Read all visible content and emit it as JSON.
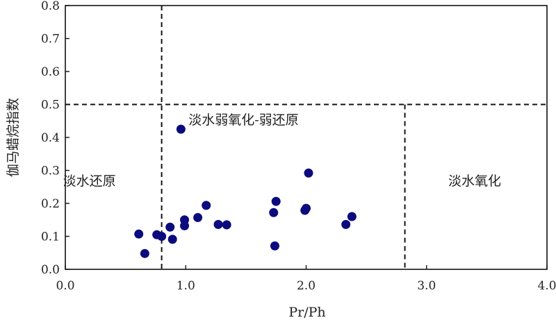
{
  "chart_data": {
    "type": "scatter",
    "title": "",
    "xlabel": "Pr/Ph",
    "ylabel": "伽马蜡烷指数",
    "xlim": [
      0.0,
      4.0
    ],
    "ylim": [
      0.0,
      0.8
    ],
    "x_ticks": [
      0.0,
      1.0,
      2.0,
      3.0,
      4.0
    ],
    "x_tick_labels": [
      "0.0",
      "1.0",
      "2.0",
      "3.0",
      "4.0"
    ],
    "y_ticks": [
      0.0,
      0.1,
      0.2,
      0.3,
      0.4,
      0.5,
      0.6,
      0.7,
      0.8
    ],
    "y_tick_labels": [
      "0.0",
      "0.1",
      "0.2",
      "0.3",
      "0.4",
      "0.5",
      "0.6",
      "0.7",
      "0.8"
    ],
    "grid": false,
    "legend": "none",
    "marker_color": "#0b0b7e",
    "guides": {
      "vertical_left": 0.8,
      "horizontal": 0.5,
      "vertical_right": 2.82
    },
    "regions": [
      {
        "label": "淡水还原",
        "x": 0.2,
        "y": 0.27
      },
      {
        "label": "淡水弱氧化-弱还原",
        "x": 1.48,
        "y": 0.455
      },
      {
        "label": "淡水氧化",
        "x": 3.4,
        "y": 0.27
      }
    ],
    "points": [
      {
        "x": 0.61,
        "y": 0.107
      },
      {
        "x": 0.66,
        "y": 0.048
      },
      {
        "x": 0.76,
        "y": 0.105
      },
      {
        "x": 0.8,
        "y": 0.1
      },
      {
        "x": 0.87,
        "y": 0.128
      },
      {
        "x": 0.89,
        "y": 0.091
      },
      {
        "x": 0.96,
        "y": 0.425
      },
      {
        "x": 0.99,
        "y": 0.15
      },
      {
        "x": 0.99,
        "y": 0.132
      },
      {
        "x": 1.1,
        "y": 0.157
      },
      {
        "x": 1.17,
        "y": 0.194
      },
      {
        "x": 1.27,
        "y": 0.136
      },
      {
        "x": 1.34,
        "y": 0.135
      },
      {
        "x": 1.73,
        "y": 0.172
      },
      {
        "x": 1.74,
        "y": 0.071
      },
      {
        "x": 1.75,
        "y": 0.206
      },
      {
        "x": 1.99,
        "y": 0.179
      },
      {
        "x": 2.0,
        "y": 0.185
      },
      {
        "x": 2.02,
        "y": 0.292
      },
      {
        "x": 2.33,
        "y": 0.136
      },
      {
        "x": 2.38,
        "y": 0.16
      }
    ]
  }
}
